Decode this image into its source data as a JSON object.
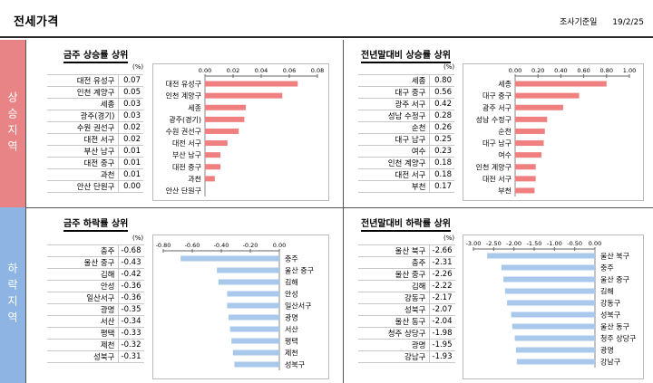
{
  "header": {
    "title": "전세가격",
    "basis_label": "조사기준일",
    "basis_date": "19/2/25"
  },
  "sections": {
    "up_label": "상승지역",
    "down_label": "하락지역"
  },
  "colors": {
    "up_bar": "#f07f7f",
    "down_bar": "#a8c8ec",
    "up_band": "#e98486",
    "down_band": "#8eb4e3"
  },
  "unit": "(%)",
  "chart_data": [
    {
      "type": "bar",
      "title": "금주 상승률 상위",
      "categories": [
        "대전 유성구",
        "인천 계양구",
        "세종",
        "광주(경기)",
        "수원 권선구",
        "대전 서구",
        "부산 남구",
        "대전 중구",
        "과천",
        "안산 단원구"
      ],
      "value_labels": [
        "0.07",
        "0.05",
        "0.03",
        "0.03",
        "0.02",
        "0.02",
        "0.01",
        "0.01",
        "0.01",
        "0.00"
      ],
      "values": [
        0.066,
        0.055,
        0.029,
        0.028,
        0.024,
        0.016,
        0.011,
        0.011,
        0.007,
        0.0
      ],
      "ticks": [
        "0.00",
        "0.02",
        "0.04",
        "0.06",
        "0.08"
      ],
      "xlim": [
        0,
        0.08
      ]
    },
    {
      "type": "bar",
      "title": "전년말대비 상승률 상위",
      "categories": [
        "세종",
        "대구 중구",
        "광주 서구",
        "성남 수정구",
        "순천",
        "대구 남구",
        "여수",
        "인천 계양구",
        "대전 서구",
        "부천"
      ],
      "value_labels": [
        "0.80",
        "0.56",
        "0.42",
        "0.28",
        "0.26",
        "0.25",
        "0.23",
        "0.18",
        "0.18",
        "0.17"
      ],
      "values": [
        0.8,
        0.56,
        0.42,
        0.28,
        0.26,
        0.25,
        0.23,
        0.18,
        0.18,
        0.17
      ],
      "ticks": [
        "0.00",
        "0.20",
        "0.40",
        "0.60",
        "0.80",
        "1.00"
      ],
      "xlim": [
        0,
        1.0
      ]
    },
    {
      "type": "bar",
      "title": "금주 하락률 상위",
      "categories": [
        "충주",
        "울산 중구",
        "김해",
        "안성",
        "일산서구",
        "광명",
        "서산",
        "평택",
        "제천",
        "성북구"
      ],
      "value_labels": [
        "-0.68",
        "-0.43",
        "-0.42",
        "-0.36",
        "-0.36",
        "-0.35",
        "-0.34",
        "-0.33",
        "-0.32",
        "-0.31"
      ],
      "values": [
        -0.68,
        -0.43,
        -0.42,
        -0.36,
        -0.36,
        -0.35,
        -0.34,
        -0.33,
        -0.32,
        -0.31
      ],
      "ticks": [
        "-0.80",
        "-0.60",
        "-0.40",
        "-0.20",
        "0.00"
      ],
      "xlim": [
        -0.8,
        0
      ]
    },
    {
      "type": "bar",
      "title": "전년말대비 하락률 상위",
      "categories": [
        "울산 북구",
        "충주",
        "울산 중구",
        "김해",
        "강동구",
        "성북구",
        "울산 동구",
        "청주 상당구",
        "광명",
        "강남구"
      ],
      "value_labels": [
        "-2.66",
        "-2.31",
        "-2.26",
        "-2.22",
        "-2.17",
        "-2.07",
        "-2.04",
        "-1.98",
        "-1.95",
        "-1.93"
      ],
      "values": [
        -2.66,
        -2.31,
        -2.26,
        -2.22,
        -2.17,
        -2.07,
        -2.04,
        -1.98,
        -1.95,
        -1.93
      ],
      "ticks": [
        "-3.00",
        "-2.50",
        "-2.00",
        "-1.50",
        "-1.00",
        "-0.50",
        "0.00"
      ],
      "xlim": [
        -3.0,
        0
      ]
    }
  ]
}
